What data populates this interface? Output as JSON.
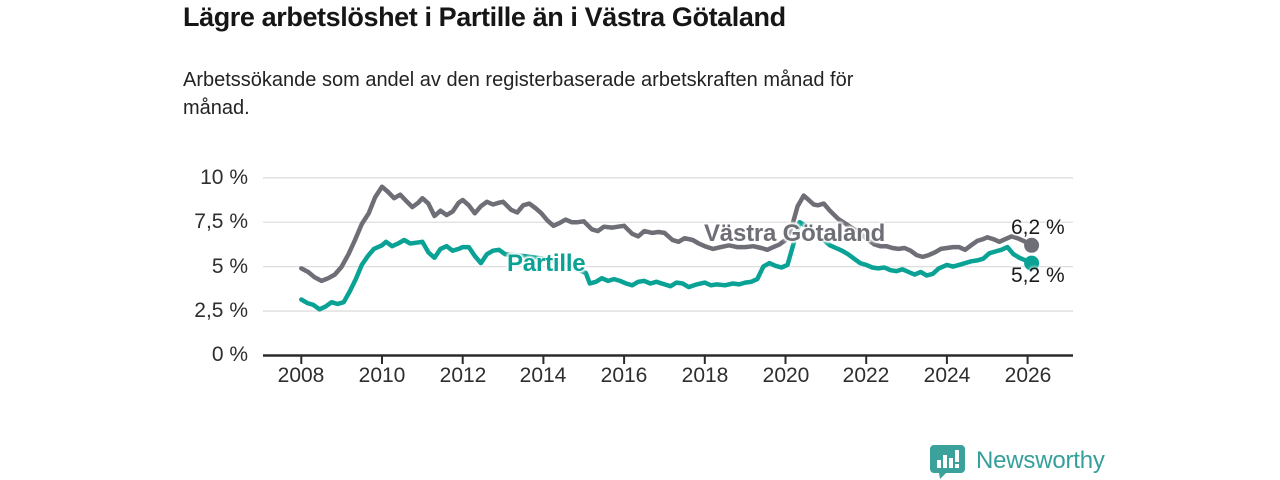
{
  "header": {
    "title": "Lägre arbetslöshet i Partille än i Västra Götaland",
    "subtitle": "Arbetssökande som andel av den registerbaserade arbetskraften månad för månad."
  },
  "footer": {
    "brand": "Newsworthy",
    "brand_color": "#35a099",
    "logo_icon": "speech-bubble-bar-chart"
  },
  "chart_data": {
    "type": "line",
    "title": "Lägre arbetslöshet i Partille än i Västra Götaland",
    "subtitle": "Arbetssökande som andel av den registerbaserade arbetskraften månad för månad.",
    "xlabel": "",
    "ylabel": "",
    "grid": true,
    "legend_position": "inline-labels",
    "xlim": [
      2007.05,
      2027.1
    ],
    "ylim": [
      0,
      10
    ],
    "x_ticks": [
      {
        "value": 2008,
        "label": "2008"
      },
      {
        "value": 2010,
        "label": "2010"
      },
      {
        "value": 2012,
        "label": "2012"
      },
      {
        "value": 2014,
        "label": "2014"
      },
      {
        "value": 2016,
        "label": "2016"
      },
      {
        "value": 2018,
        "label": "2018"
      },
      {
        "value": 2020,
        "label": "2020"
      },
      {
        "value": 2022,
        "label": "2022"
      },
      {
        "value": 2024,
        "label": "2024"
      },
      {
        "value": 2026,
        "label": "2026"
      }
    ],
    "y_ticks": [
      {
        "value": 10,
        "label": "10 %"
      },
      {
        "value": 7.5,
        "label": "7,5 %"
      },
      {
        "value": 5,
        "label": "5 %"
      },
      {
        "value": 2.5,
        "label": "2,5 %"
      },
      {
        "value": 0,
        "label": "0 %"
      }
    ],
    "gridline_values": [
      2.5,
      5,
      7.5,
      10
    ],
    "series": [
      {
        "name": "Västra Götaland",
        "color": "#6e6e76",
        "end_label": "6,2 %",
        "end_value": 6.2,
        "points": [
          [
            2008.0,
            4.9
          ],
          [
            2008.17,
            4.7
          ],
          [
            2008.33,
            4.4
          ],
          [
            2008.5,
            4.2
          ],
          [
            2008.67,
            4.35
          ],
          [
            2008.83,
            4.55
          ],
          [
            2009.0,
            5.0
          ],
          [
            2009.17,
            5.7
          ],
          [
            2009.33,
            6.5
          ],
          [
            2009.5,
            7.4
          ],
          [
            2009.67,
            8.0
          ],
          [
            2009.83,
            8.9
          ],
          [
            2010.0,
            9.5
          ],
          [
            2010.15,
            9.2
          ],
          [
            2010.3,
            8.85
          ],
          [
            2010.45,
            9.05
          ],
          [
            2010.6,
            8.7
          ],
          [
            2010.75,
            8.35
          ],
          [
            2010.9,
            8.6
          ],
          [
            2011.0,
            8.85
          ],
          [
            2011.15,
            8.55
          ],
          [
            2011.3,
            7.85
          ],
          [
            2011.45,
            8.15
          ],
          [
            2011.6,
            7.9
          ],
          [
            2011.75,
            8.1
          ],
          [
            2011.9,
            8.6
          ],
          [
            2012.0,
            8.75
          ],
          [
            2012.15,
            8.45
          ],
          [
            2012.3,
            8.0
          ],
          [
            2012.45,
            8.4
          ],
          [
            2012.6,
            8.65
          ],
          [
            2012.75,
            8.5
          ],
          [
            2012.9,
            8.6
          ],
          [
            2013.0,
            8.65
          ],
          [
            2013.2,
            8.2
          ],
          [
            2013.35,
            8.05
          ],
          [
            2013.5,
            8.45
          ],
          [
            2013.65,
            8.55
          ],
          [
            2013.8,
            8.3
          ],
          [
            2013.95,
            8.0
          ],
          [
            2014.1,
            7.6
          ],
          [
            2014.25,
            7.3
          ],
          [
            2014.4,
            7.45
          ],
          [
            2014.55,
            7.65
          ],
          [
            2014.7,
            7.5
          ],
          [
            2014.85,
            7.5
          ],
          [
            2015.0,
            7.55
          ],
          [
            2015.2,
            7.1
          ],
          [
            2015.35,
            7.0
          ],
          [
            2015.5,
            7.25
          ],
          [
            2015.7,
            7.2
          ],
          [
            2015.85,
            7.25
          ],
          [
            2016.0,
            7.3
          ],
          [
            2016.2,
            6.85
          ],
          [
            2016.35,
            6.7
          ],
          [
            2016.5,
            7.0
          ],
          [
            2016.7,
            6.9
          ],
          [
            2016.85,
            6.95
          ],
          [
            2017.0,
            6.9
          ],
          [
            2017.2,
            6.5
          ],
          [
            2017.35,
            6.4
          ],
          [
            2017.5,
            6.6
          ],
          [
            2017.7,
            6.5
          ],
          [
            2017.85,
            6.3
          ],
          [
            2018.0,
            6.15
          ],
          [
            2018.2,
            6.0
          ],
          [
            2018.4,
            6.1
          ],
          [
            2018.6,
            6.2
          ],
          [
            2018.8,
            6.1
          ],
          [
            2019.0,
            6.1
          ],
          [
            2019.2,
            6.15
          ],
          [
            2019.4,
            6.05
          ],
          [
            2019.55,
            5.95
          ],
          [
            2019.7,
            6.1
          ],
          [
            2019.85,
            6.25
          ],
          [
            2020.0,
            6.5
          ],
          [
            2020.15,
            7.2
          ],
          [
            2020.3,
            8.4
          ],
          [
            2020.45,
            9.0
          ],
          [
            2020.55,
            8.8
          ],
          [
            2020.7,
            8.5
          ],
          [
            2020.8,
            8.45
          ],
          [
            2020.95,
            8.55
          ],
          [
            2021.1,
            8.15
          ],
          [
            2021.3,
            7.7
          ],
          [
            2021.5,
            7.4
          ],
          [
            2021.7,
            7.1
          ],
          [
            2021.85,
            6.9
          ],
          [
            2022.0,
            6.6
          ],
          [
            2022.2,
            6.25
          ],
          [
            2022.35,
            6.15
          ],
          [
            2022.5,
            6.15
          ],
          [
            2022.65,
            6.05
          ],
          [
            2022.8,
            6.0
          ],
          [
            2022.95,
            6.05
          ],
          [
            2023.1,
            5.9
          ],
          [
            2023.25,
            5.65
          ],
          [
            2023.4,
            5.55
          ],
          [
            2023.55,
            5.65
          ],
          [
            2023.7,
            5.8
          ],
          [
            2023.85,
            6.0
          ],
          [
            2024.0,
            6.05
          ],
          [
            2024.15,
            6.1
          ],
          [
            2024.3,
            6.1
          ],
          [
            2024.45,
            5.95
          ],
          [
            2024.6,
            6.2
          ],
          [
            2024.75,
            6.45
          ],
          [
            2024.9,
            6.55
          ],
          [
            2025.0,
            6.65
          ],
          [
            2025.15,
            6.55
          ],
          [
            2025.3,
            6.4
          ],
          [
            2025.45,
            6.55
          ],
          [
            2025.6,
            6.7
          ],
          [
            2025.75,
            6.6
          ],
          [
            2025.9,
            6.45
          ],
          [
            2026.1,
            6.2
          ]
        ]
      },
      {
        "name": "Partille",
        "color": "#0aa295",
        "end_label": "5,2 %",
        "end_value": 5.2,
        "points": [
          [
            2008.0,
            3.15
          ],
          [
            2008.15,
            2.95
          ],
          [
            2008.3,
            2.85
          ],
          [
            2008.45,
            2.6
          ],
          [
            2008.6,
            2.75
          ],
          [
            2008.75,
            3.0
          ],
          [
            2008.9,
            2.9
          ],
          [
            2009.05,
            3.0
          ],
          [
            2009.2,
            3.6
          ],
          [
            2009.35,
            4.3
          ],
          [
            2009.5,
            5.1
          ],
          [
            2009.65,
            5.6
          ],
          [
            2009.8,
            6.0
          ],
          [
            2010.0,
            6.2
          ],
          [
            2010.1,
            6.4
          ],
          [
            2010.25,
            6.15
          ],
          [
            2010.4,
            6.3
          ],
          [
            2010.55,
            6.5
          ],
          [
            2010.7,
            6.3
          ],
          [
            2010.85,
            6.35
          ],
          [
            2011.0,
            6.4
          ],
          [
            2011.15,
            5.8
          ],
          [
            2011.3,
            5.5
          ],
          [
            2011.45,
            6.0
          ],
          [
            2011.6,
            6.15
          ],
          [
            2011.75,
            5.9
          ],
          [
            2011.9,
            6.0
          ],
          [
            2012.0,
            6.1
          ],
          [
            2012.15,
            6.1
          ],
          [
            2012.3,
            5.6
          ],
          [
            2012.45,
            5.2
          ],
          [
            2012.6,
            5.7
          ],
          [
            2012.75,
            5.9
          ],
          [
            2012.9,
            5.95
          ],
          [
            2013.05,
            5.7
          ],
          [
            2013.5,
            5.6
          ],
          [
            2014.0,
            5.45
          ],
          [
            2014.5,
            5.2
          ],
          [
            2014.8,
            4.9
          ],
          [
            2015.05,
            4.65
          ],
          [
            2015.15,
            4.05
          ],
          [
            2015.3,
            4.15
          ],
          [
            2015.45,
            4.35
          ],
          [
            2015.6,
            4.2
          ],
          [
            2015.75,
            4.3
          ],
          [
            2015.9,
            4.2
          ],
          [
            2016.05,
            4.05
          ],
          [
            2016.2,
            3.95
          ],
          [
            2016.35,
            4.15
          ],
          [
            2016.5,
            4.2
          ],
          [
            2016.65,
            4.05
          ],
          [
            2016.8,
            4.15
          ],
          [
            2017.0,
            4.0
          ],
          [
            2017.15,
            3.9
          ],
          [
            2017.3,
            4.1
          ],
          [
            2017.45,
            4.05
          ],
          [
            2017.6,
            3.85
          ],
          [
            2017.8,
            4.0
          ],
          [
            2018.0,
            4.1
          ],
          [
            2018.15,
            3.95
          ],
          [
            2018.3,
            4.0
          ],
          [
            2018.5,
            3.95
          ],
          [
            2018.7,
            4.05
          ],
          [
            2018.85,
            4.0
          ],
          [
            2019.0,
            4.1
          ],
          [
            2019.15,
            4.15
          ],
          [
            2019.3,
            4.3
          ],
          [
            2019.45,
            5.0
          ],
          [
            2019.6,
            5.2
          ],
          [
            2019.75,
            5.05
          ],
          [
            2019.9,
            4.95
          ],
          [
            2020.05,
            5.1
          ],
          [
            2020.2,
            6.3
          ],
          [
            2020.35,
            7.5
          ],
          [
            2020.5,
            7.3
          ],
          [
            2020.7,
            7.0
          ],
          [
            2020.9,
            6.6
          ],
          [
            2021.1,
            6.2
          ],
          [
            2021.25,
            6.05
          ],
          [
            2021.4,
            5.9
          ],
          [
            2021.55,
            5.7
          ],
          [
            2021.7,
            5.45
          ],
          [
            2021.85,
            5.2
          ],
          [
            2022.0,
            5.1
          ],
          [
            2022.15,
            4.95
          ],
          [
            2022.3,
            4.9
          ],
          [
            2022.45,
            4.95
          ],
          [
            2022.6,
            4.8
          ],
          [
            2022.75,
            4.75
          ],
          [
            2022.9,
            4.85
          ],
          [
            2023.05,
            4.7
          ],
          [
            2023.2,
            4.55
          ],
          [
            2023.35,
            4.7
          ],
          [
            2023.5,
            4.5
          ],
          [
            2023.65,
            4.6
          ],
          [
            2023.8,
            4.9
          ],
          [
            2024.0,
            5.1
          ],
          [
            2024.15,
            5.0
          ],
          [
            2024.3,
            5.1
          ],
          [
            2024.45,
            5.2
          ],
          [
            2024.6,
            5.3
          ],
          [
            2024.75,
            5.35
          ],
          [
            2024.9,
            5.45
          ],
          [
            2025.05,
            5.75
          ],
          [
            2025.2,
            5.85
          ],
          [
            2025.35,
            5.95
          ],
          [
            2025.5,
            6.1
          ],
          [
            2025.65,
            5.7
          ],
          [
            2025.8,
            5.5
          ],
          [
            2025.95,
            5.35
          ],
          [
            2026.1,
            5.2
          ]
        ]
      }
    ],
    "colors": {
      "axis": "#2b2b2b",
      "gridline": "#dedede",
      "tick_text": "#2e2e2e"
    }
  }
}
